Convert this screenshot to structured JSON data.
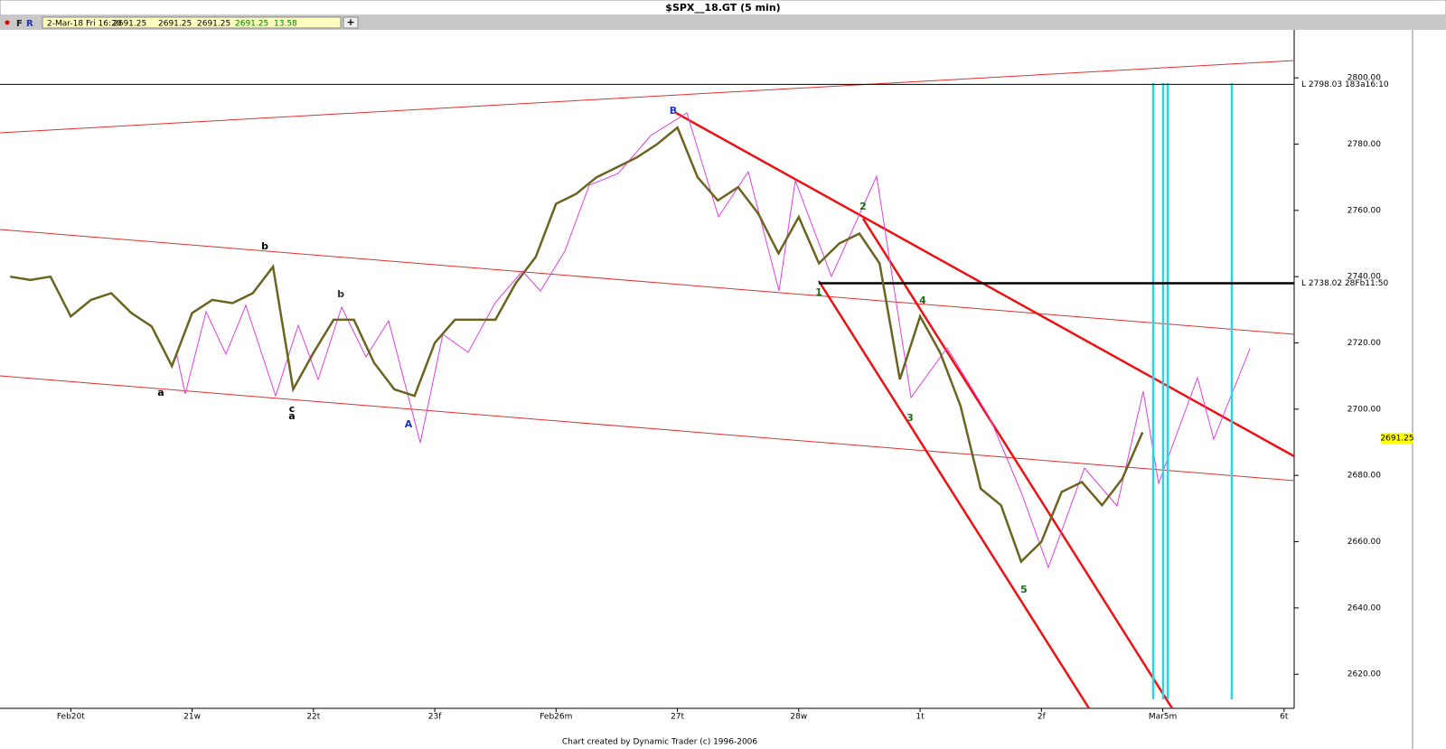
{
  "window_title": "$SPX__18.GT (5 min)",
  "info_bar": [
    "2-Mar-18 Fri 16:20",
    "2691.25",
    "2691.25",
    "2691.25",
    "2691.25",
    "13.58"
  ],
  "footer": "Chart created by Dynamic Trader  (c) 1996-2006",
  "chart_data": {
    "type": "line",
    "color": "#6b6320",
    "categories": [
      "",
      "",
      "",
      "Feb20t",
      "",
      "",
      "",
      "",
      "",
      "21w",
      "",
      "",
      "",
      "",
      "",
      "22t",
      "",
      "",
      "",
      "",
      "",
      "23f",
      "",
      "",
      "",
      "",
      "",
      "Feb26m",
      "",
      "",
      "",
      "",
      "",
      "27t",
      "",
      "",
      "",
      "",
      "",
      "28w",
      "",
      "",
      "",
      "",
      "",
      "1t",
      "",
      "",
      "",
      "",
      "",
      "2f",
      "",
      "",
      "",
      "",
      "",
      "Mar5m",
      "",
      "",
      "",
      "",
      "",
      "6t"
    ],
    "values": [
      2740,
      2739,
      2740,
      2728,
      2733,
      2735,
      2729,
      2725,
      2713,
      2729,
      2733,
      2732,
      2735,
      2743,
      2706,
      2717,
      2727,
      2727,
      2714,
      2706,
      2704,
      2720,
      2727,
      2727,
      2727,
      2738,
      2746,
      2762,
      2765,
      2770,
      2773,
      2776,
      2780,
      2785,
      2770,
      2763,
      2767,
      2759,
      2747,
      2758,
      2744,
      2750,
      2753,
      2744,
      2709,
      2728,
      2717,
      2701,
      2676,
      2671,
      2654,
      2660,
      2675,
      2678,
      2671,
      2679,
      2693,
      null,
      null,
      null,
      null,
      null,
      null,
      null
    ],
    "ylim": [
      2609.7,
      2814.5
    ],
    "yticks": [
      {
        "value": 2620,
        "label": "2620.00"
      },
      {
        "value": 2640,
        "label": "2640.00"
      },
      {
        "value": 2660,
        "label": "2660.00"
      },
      {
        "value": 2680,
        "label": "2680.00"
      },
      {
        "value": 2700,
        "label": "2700.00"
      },
      {
        "value": 2720,
        "label": "2720.00"
      },
      {
        "value": 2740,
        "label": "2740.00"
      },
      {
        "value": 2760,
        "label": "2760.00"
      },
      {
        "value": 2780,
        "label": "2780.00"
      },
      {
        "value": 2800,
        "label": "2800.00"
      }
    ],
    "levels": [
      {
        "value": 2798.03,
        "label": "L 2798.03 183a16:10"
      },
      {
        "value": 2738.02,
        "label": "L 2738.02 28Fb11:50"
      }
    ],
    "last_price": 2691.25,
    "annotations": [
      "a",
      "b",
      "c",
      "a",
      "b",
      "A",
      "B",
      "1",
      "2",
      "3",
      "4",
      "5"
    ]
  }
}
